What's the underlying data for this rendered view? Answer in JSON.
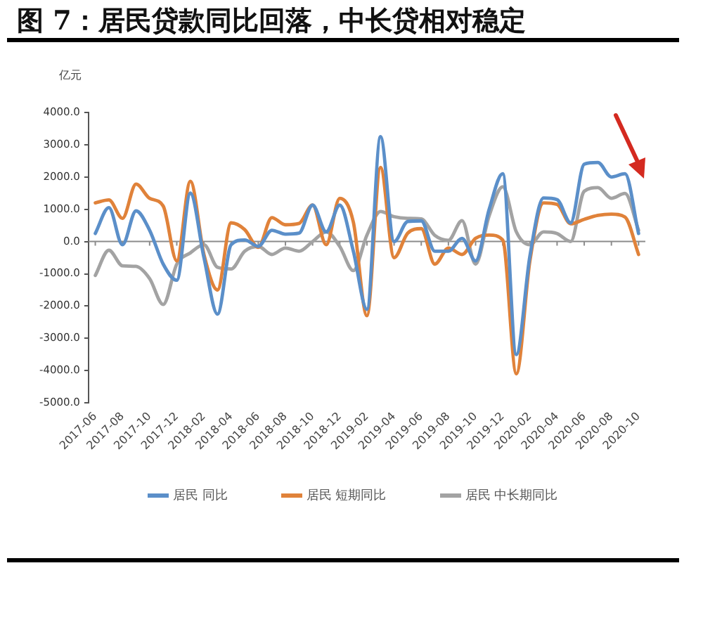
{
  "chart_data": {
    "type": "line",
    "title": "图 7：居民贷款同比回落，中长贷相对稳定",
    "ylabel": "亿元",
    "categories": [
      "2017-06",
      null,
      "2017-08",
      null,
      "2017-10",
      null,
      "2017-12",
      null,
      "2018-02",
      null,
      "2018-04",
      null,
      "2018-06",
      null,
      "2018-08",
      null,
      "2018-10",
      null,
      "2018-12",
      null,
      "2019-02",
      null,
      "2019-04",
      null,
      "2019-06",
      null,
      "2019-08",
      null,
      "2019-10",
      null,
      "2019-12",
      null,
      "2020-02",
      null,
      "2020-04",
      null,
      "2020-06",
      null,
      "2020-08",
      null,
      "2020-10"
    ],
    "series": [
      {
        "name": "居民 同比",
        "color": "#5b8fc9",
        "values": [
          250,
          1050,
          -100,
          950,
          350,
          -700,
          -1200,
          1500,
          -500,
          -2250,
          -100,
          50,
          -150,
          350,
          230,
          260,
          1130,
          300,
          1130,
          -300,
          -2100,
          3250,
          0,
          620,
          640,
          -300,
          -300,
          100,
          -600,
          1000,
          2100,
          -3500,
          -450,
          1350,
          1300,
          580,
          2400,
          2450,
          2000,
          2100,
          250
        ]
      },
      {
        "name": "居民 短期同比",
        "color": "#e0823a",
        "values": [
          1200,
          1290,
          720,
          1780,
          1340,
          1100,
          -600,
          1870,
          -400,
          -1500,
          580,
          370,
          -180,
          740,
          520,
          560,
          1130,
          -100,
          1340,
          600,
          -2300,
          2300,
          -500,
          260,
          400,
          -700,
          -200,
          -400,
          100,
          200,
          50,
          -4100,
          -600,
          1200,
          1150,
          550,
          690,
          810,
          850,
          760,
          -400
        ]
      },
      {
        "name": "居民 中长期同比",
        "color": "#a3a3a3",
        "values": [
          -1050,
          -270,
          -750,
          -770,
          -1150,
          -1950,
          -700,
          -350,
          -100,
          -800,
          -850,
          -300,
          -150,
          -400,
          -200,
          -300,
          0,
          300,
          -150,
          -900,
          200,
          930,
          770,
          720,
          700,
          190,
          40,
          650,
          -700,
          800,
          1700,
          300,
          -100,
          300,
          250,
          0,
          1560,
          1670,
          1340,
          1490,
          350
        ]
      }
    ],
    "ylim": [
      -5000,
      4000
    ],
    "yticks": [
      {
        "value": -5000,
        "label": "-5000.0"
      },
      {
        "value": -4000,
        "label": "-4000.0"
      },
      {
        "value": -3000,
        "label": "-3000.0"
      },
      {
        "value": -2000,
        "label": "-2000.0"
      },
      {
        "value": -1000,
        "label": "-1000.0"
      },
      {
        "value": 0,
        "label": "0.0"
      },
      {
        "value": 1000,
        "label": "1000.0"
      },
      {
        "value": 2000,
        "label": "2000.0"
      },
      {
        "value": 3000,
        "label": "3000.0"
      },
      {
        "value": 4000,
        "label": "4000.0"
      }
    ],
    "ref_lines": [
      {
        "axis": "y",
        "value": 0,
        "color": "#8c8c8c"
      }
    ],
    "grid": false,
    "legend": "bottom",
    "marker": "none",
    "line_style": "solid"
  }
}
